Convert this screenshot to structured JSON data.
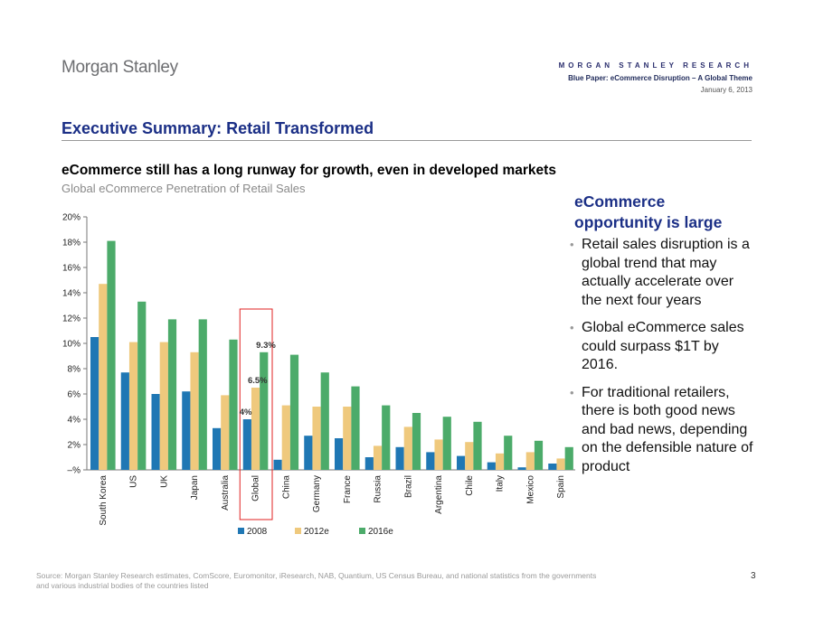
{
  "header": {
    "logo": "Morgan Stanley",
    "brand": "MORGAN STANLEY RESEARCH",
    "paper": "Blue Paper: eCommerce Disruption – A Global Theme",
    "date": "January 6, 2013"
  },
  "title": "Executive Summary: Retail Transformed",
  "subtitle": "eCommerce still has a long runway for growth, even in developed markets",
  "sidebar": {
    "heading": "eCommerce opportunity is large",
    "bullets": [
      "Retail sales disruption is a global trend that may actually accelerate over the next four years",
      "Global eCommerce sales could surpass $1T by 2016.",
      "For traditional retailers, there is both good news and bad news, depending on the defensible nature of product"
    ]
  },
  "footer": {
    "source": "Source: Morgan Stanley Research estimates, ComScore, Euromonitor, iResearch, NAB, Quantium, US Census Bureau, and national statistics from the governments and various industrial bodies of the countries listed",
    "page": "3"
  },
  "colors": {
    "s2008": "#1f77b4",
    "s2012": "#efc97d",
    "s2016": "#4cab6a",
    "highlight": "#e02020"
  },
  "chart_data": {
    "type": "bar",
    "title": "Global eCommerce Penetration of Retail Sales",
    "xlabel": "",
    "ylabel": "",
    "ylim": [
      0,
      20
    ],
    "yticks": [
      "–%",
      "2%",
      "4%",
      "6%",
      "8%",
      "10%",
      "12%",
      "14%",
      "16%",
      "18%",
      "20%"
    ],
    "categories": [
      "South Korea",
      "US",
      "UK",
      "Japan",
      "Australia",
      "Global",
      "China",
      "Germany",
      "France",
      "Russia",
      "Brazil",
      "Argentina",
      "Chile",
      "Italy",
      "Mexico",
      "Spain"
    ],
    "series": [
      {
        "name": "2008",
        "values": [
          10.5,
          7.7,
          6.0,
          6.2,
          3.3,
          4.0,
          0.8,
          2.7,
          2.5,
          1.0,
          1.8,
          1.4,
          1.1,
          0.6,
          0.2,
          0.5
        ]
      },
      {
        "name": "2012e",
        "values": [
          14.7,
          10.1,
          10.1,
          9.3,
          5.9,
          6.5,
          5.1,
          5.0,
          5.0,
          1.9,
          3.4,
          2.4,
          2.2,
          1.3,
          1.4,
          0.9
        ]
      },
      {
        "name": "2016e",
        "values": [
          18.1,
          13.3,
          11.9,
          11.9,
          10.3,
          9.3,
          9.1,
          7.7,
          6.6,
          5.1,
          4.5,
          4.2,
          3.8,
          2.7,
          2.3,
          1.8
        ]
      }
    ],
    "annotations": [
      {
        "category": "Global",
        "series": "2008",
        "label": "4%"
      },
      {
        "category": "Global",
        "series": "2012e",
        "label": "6.5%"
      },
      {
        "category": "Global",
        "series": "2016e",
        "label": "9.3%"
      }
    ],
    "highlight": "Global",
    "legend": "bottom"
  }
}
